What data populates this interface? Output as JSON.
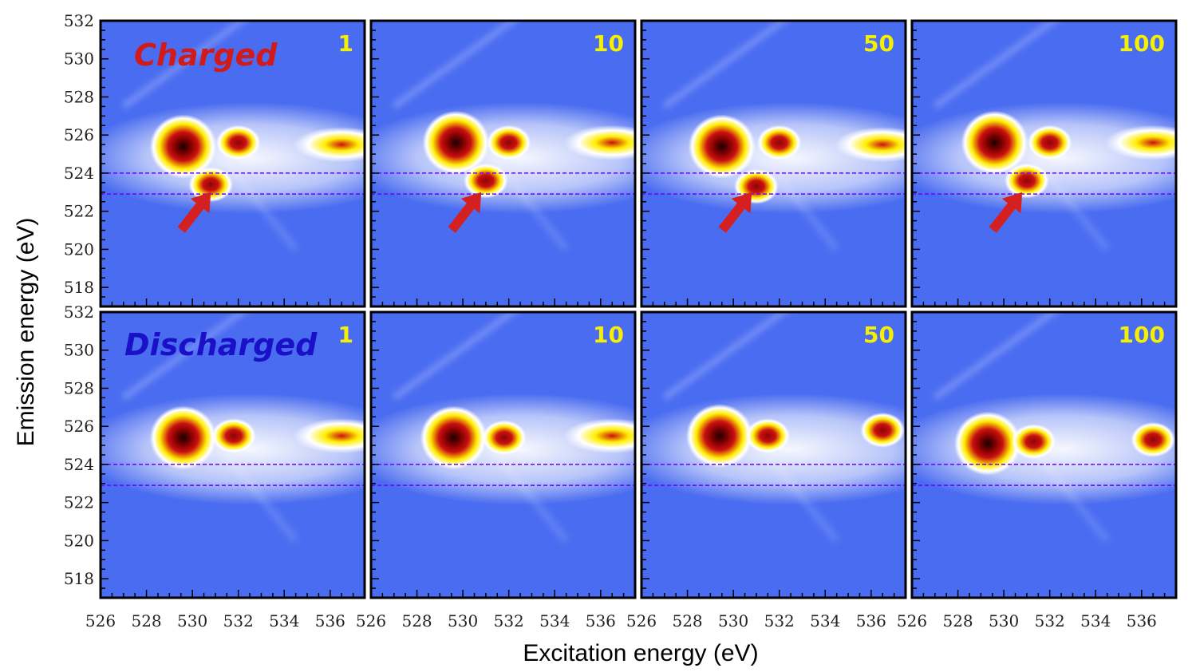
{
  "chart_data": {
    "type": "heatmap",
    "layout": {
      "rows": 2,
      "cols": 4
    },
    "xlabel": "Excitation energy (eV)",
    "ylabel": "Emission energy (eV)",
    "xlim": [
      526,
      537.5
    ],
    "ylim": [
      517,
      532
    ],
    "xticks": [
      526,
      528,
      530,
      532,
      534,
      536
    ],
    "yticks": [
      518,
      520,
      522,
      524,
      526,
      528,
      530,
      532
    ],
    "reference_lines_y": [
      524.0,
      522.9
    ],
    "colors": {
      "background": "#4a6cf0",
      "low": "#ffffff",
      "mid": "#ffee00",
      "high": "#cc1010",
      "max": "#1a0000",
      "reference_line": "#6a00ff",
      "arrow": "#d42020",
      "charged_label": "#d11a1a",
      "discharged_label": "#1a10c8",
      "corner_label": "#f5f000"
    },
    "rows": [
      {
        "label": "Charged",
        "panels": [
          {
            "cycle": "1",
            "features": [
              {
                "x": 529.6,
                "y": 525.4,
                "level": "max"
              },
              {
                "x": 532.0,
                "y": 525.6,
                "level": "high"
              },
              {
                "x": 530.8,
                "y": 523.4,
                "level": "high"
              },
              {
                "x": 536.5,
                "y": 525.5,
                "level": "mid"
              }
            ],
            "arrow": {
              "x": 530.8,
              "y": 523.0
            }
          },
          {
            "cycle": "10",
            "features": [
              {
                "x": 529.7,
                "y": 525.6,
                "level": "max"
              },
              {
                "x": 532.0,
                "y": 525.6,
                "level": "high"
              },
              {
                "x": 531.0,
                "y": 523.6,
                "level": "high"
              },
              {
                "x": 536.5,
                "y": 525.6,
                "level": "mid"
              }
            ],
            "arrow": {
              "x": 530.8,
              "y": 523.0
            }
          },
          {
            "cycle": "50",
            "features": [
              {
                "x": 529.5,
                "y": 525.4,
                "level": "max"
              },
              {
                "x": 532.0,
                "y": 525.6,
                "level": "high"
              },
              {
                "x": 531.0,
                "y": 523.3,
                "level": "high"
              },
              {
                "x": 536.5,
                "y": 525.5,
                "level": "mid"
              }
            ],
            "arrow": {
              "x": 530.8,
              "y": 523.0
            }
          },
          {
            "cycle": "100",
            "features": [
              {
                "x": 529.6,
                "y": 525.6,
                "level": "max"
              },
              {
                "x": 532.0,
                "y": 525.6,
                "level": "high"
              },
              {
                "x": 531.0,
                "y": 523.6,
                "level": "high"
              },
              {
                "x": 536.5,
                "y": 525.6,
                "level": "mid"
              }
            ],
            "arrow": {
              "x": 530.8,
              "y": 523.0
            }
          }
        ]
      },
      {
        "label": "Discharged",
        "panels": [
          {
            "cycle": "1",
            "features": [
              {
                "x": 529.6,
                "y": 525.4,
                "level": "max"
              },
              {
                "x": 531.8,
                "y": 525.5,
                "level": "high"
              },
              {
                "x": 536.5,
                "y": 525.5,
                "level": "mid"
              }
            ]
          },
          {
            "cycle": "10",
            "features": [
              {
                "x": 529.6,
                "y": 525.4,
                "level": "max"
              },
              {
                "x": 531.8,
                "y": 525.4,
                "level": "high"
              },
              {
                "x": 536.5,
                "y": 525.5,
                "level": "mid"
              }
            ]
          },
          {
            "cycle": "50",
            "features": [
              {
                "x": 529.4,
                "y": 525.5,
                "level": "max"
              },
              {
                "x": 531.5,
                "y": 525.5,
                "level": "high"
              },
              {
                "x": 536.5,
                "y": 525.8,
                "level": "high"
              }
            ]
          },
          {
            "cycle": "100",
            "features": [
              {
                "x": 529.3,
                "y": 525.1,
                "level": "max"
              },
              {
                "x": 531.3,
                "y": 525.2,
                "level": "high"
              },
              {
                "x": 536.5,
                "y": 525.3,
                "level": "high"
              }
            ]
          }
        ]
      }
    ]
  }
}
